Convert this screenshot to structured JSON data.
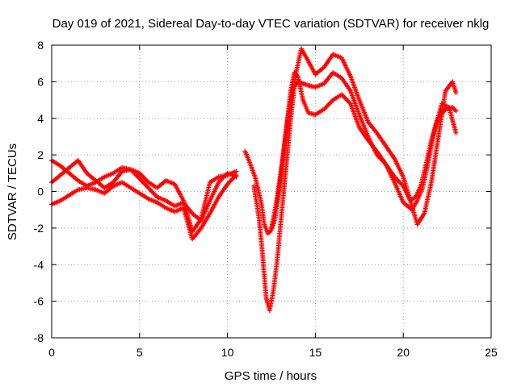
{
  "chart_data": {
    "type": "scatter",
    "title": "Day 019 of 2021, Sidereal Day-to-day VTEC variation (SDTVAR) for receiver nklg",
    "xlabel": "GPS time / hours",
    "ylabel": "SDTVAR / TECUs",
    "xlim": [
      0,
      25
    ],
    "ylim": [
      -8,
      8
    ],
    "xticks": [
      "0",
      "5",
      "10",
      "15",
      "20",
      "25"
    ],
    "yticks": [
      "-8",
      "-6",
      "-4",
      "-2",
      "0",
      "2",
      "4",
      "6",
      "8"
    ],
    "grid": true,
    "legend": "none",
    "marker": "plus",
    "color": "#ff0000",
    "series": [
      {
        "x": [
          0,
          0.5,
          1,
          1.5,
          2,
          2.5,
          3,
          3.5,
          4,
          4.5,
          5,
          5.5,
          6,
          6.5,
          7,
          7.5,
          8,
          8.5,
          9,
          9.5,
          10,
          10.5
        ],
        "y": [
          1.7,
          1.4,
          1.0,
          0.6,
          0.3,
          0.5,
          0.8,
          1.0,
          1.3,
          1.2,
          1.0,
          0.5,
          0.2,
          0.6,
          0.4,
          -0.5,
          -2.2,
          -1.5,
          0.5,
          0.8,
          0.9,
          1.1
        ]
      },
      {
        "x": [
          0,
          0.5,
          1,
          1.5,
          2,
          2.5,
          3,
          3.5,
          4,
          4.5,
          5,
          5.5,
          6,
          6.5,
          7,
          7.5,
          8,
          8.5,
          9,
          9.5,
          10,
          10.5
        ],
        "y": [
          0.5,
          0.9,
          1.3,
          1.7,
          1.0,
          0.6,
          0.2,
          0.5,
          1.1,
          1.2,
          0.7,
          0.2,
          -0.3,
          -0.5,
          -0.8,
          -0.6,
          -1.2,
          -1.6,
          -0.5,
          0.5,
          1.0,
          0.8
        ]
      },
      {
        "x": [
          0,
          0.5,
          1,
          1.5,
          2,
          2.5,
          3,
          3.5,
          4,
          4.5,
          5,
          5.5,
          6,
          6.5,
          7,
          7.5,
          8,
          8.5,
          9,
          9.5,
          10,
          10.5
        ],
        "y": [
          -0.7,
          -0.5,
          -0.2,
          0.1,
          0.2,
          0.1,
          -0.1,
          0.3,
          0.5,
          0.2,
          -0.1,
          -0.4,
          -0.6,
          -0.9,
          -1.1,
          -0.9,
          -2.6,
          -2.0,
          -1.2,
          -0.3,
          0.4,
          0.9
        ]
      },
      {
        "x": [
          11,
          11.3,
          11.6,
          11.9,
          12.1,
          12.3,
          12.5,
          12.7,
          13.0,
          13.3,
          13.6,
          13.8,
          14.0,
          14.3,
          14.6,
          15.0,
          15.5,
          16.0,
          16.5,
          17.0,
          17.5,
          18.0,
          18.5,
          19.0,
          19.5,
          20.0,
          20.5,
          20.8,
          21.1,
          21.4,
          21.8,
          22.2,
          22.6,
          23.0
        ],
        "y": [
          2.2,
          1.5,
          0.7,
          -0.5,
          -1.8,
          -2.3,
          -2.1,
          -1.5,
          0.5,
          3.0,
          5.5,
          6.5,
          6.3,
          5.0,
          4.3,
          4.2,
          4.5,
          5.0,
          5.3,
          4.8,
          3.5,
          2.8,
          2.2,
          1.5,
          0.5,
          -0.6,
          -1.0,
          -0.5,
          0.2,
          1.5,
          3.5,
          4.8,
          4.6,
          3.2
        ]
      },
      {
        "x": [
          11.5,
          11.8,
          12.0,
          12.2,
          12.4,
          12.6,
          12.8,
          13.0,
          13.3,
          13.6,
          13.9,
          14.2,
          14.5,
          15.0,
          15.5,
          16.0,
          16.5,
          17.0,
          17.5,
          18.0,
          18.5,
          19.0,
          19.5,
          20.0,
          20.4,
          20.8,
          21.2,
          21.6,
          22.0,
          22.4,
          22.8,
          23.0
        ],
        "y": [
          0.3,
          -1.5,
          -3.5,
          -5.8,
          -6.5,
          -5.5,
          -4.0,
          -2.0,
          1.0,
          4.0,
          6.5,
          7.8,
          7.3,
          6.4,
          6.8,
          7.5,
          7.3,
          6.3,
          5.0,
          3.8,
          3.2,
          2.5,
          1.8,
          0.8,
          -0.5,
          -1.8,
          -1.2,
          0.5,
          3.0,
          5.5,
          6.0,
          5.4
        ]
      },
      {
        "x": [
          12.5,
          12.8,
          13.1,
          13.4,
          13.7,
          14.0,
          14.3,
          14.6,
          15.0,
          15.5,
          16.0,
          16.5,
          17.0,
          17.5,
          18.0,
          18.5,
          19.0,
          19.5,
          20.0,
          20.4,
          20.7,
          21.0,
          21.3,
          21.6,
          22.0,
          22.4,
          22.8,
          23.0
        ],
        "y": [
          -2.0,
          -0.5,
          1.5,
          3.8,
          5.6,
          6.0,
          5.9,
          5.8,
          5.7,
          5.9,
          6.5,
          6.2,
          5.5,
          4.2,
          3.0,
          2.0,
          1.5,
          0.8,
          0.3,
          -0.5,
          -0.3,
          0.3,
          1.5,
          2.8,
          4.0,
          4.5,
          4.6,
          4.4
        ]
      }
    ]
  }
}
